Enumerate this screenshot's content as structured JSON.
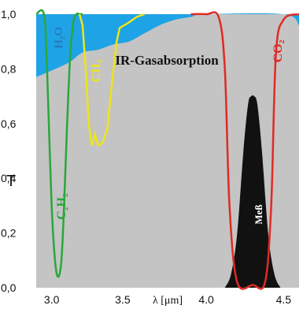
{
  "chart_data": {
    "type": "line",
    "title": "IR-Gasabsorption",
    "xlabel": "λ [μm]",
    "ylabel": "T",
    "xlim": [
      2.9,
      4.6
    ],
    "ylim": [
      0,
      1
    ],
    "x_ticks": [
      "3.0",
      "3.5",
      "4.0",
      "4.5"
    ],
    "y_ticks": [
      "0,0",
      "0,2",
      "0,4",
      "0,6",
      "0,8",
      "1,0"
    ],
    "grid": false,
    "colors": {
      "background": "#c4c4c4",
      "water_band": "#1ea3e6",
      "h2o": "#2a7ab8",
      "c2h2": "#29a83a",
      "ch4": "#ece51b",
      "co2": "#e02a24",
      "filter": "#111111"
    },
    "series": [
      {
        "name": "C₂H₂",
        "label": "C₂H₂",
        "x": [
          2.9,
          2.95,
          2.97,
          3.0,
          3.03,
          3.06,
          3.08,
          3.1,
          3.12,
          3.14,
          3.16,
          3.18,
          3.2
        ],
        "y": [
          1.0,
          1.0,
          0.8,
          0.3,
          0.06,
          0.08,
          0.3,
          0.6,
          0.85,
          0.97,
          1.0,
          1.0,
          1.0
        ]
      },
      {
        "name": "CH₄",
        "label": "CH₄",
        "x": [
          3.18,
          3.2,
          3.22,
          3.24,
          3.26,
          3.28,
          3.3,
          3.33,
          3.36,
          3.39,
          3.42,
          3.44,
          3.47,
          3.5,
          3.55,
          3.6
        ],
        "y": [
          1.0,
          0.96,
          0.8,
          0.6,
          0.52,
          0.56,
          0.52,
          0.53,
          0.58,
          0.75,
          0.9,
          0.95,
          0.96,
          0.97,
          0.99,
          1.0
        ]
      },
      {
        "name": "CO₂",
        "label": "CO₂",
        "x": [
          3.9,
          4.0,
          4.08,
          4.12,
          4.15,
          4.2,
          4.3,
          4.38,
          4.42,
          4.45,
          4.5,
          4.6
        ],
        "y": [
          1.0,
          1.0,
          0.99,
          0.8,
          0.3,
          0.02,
          0.01,
          0.02,
          0.3,
          0.85,
          0.98,
          1.0
        ]
      },
      {
        "name": "Meß",
        "label": "Meß",
        "x": [
          4.12,
          4.16,
          4.2,
          4.24,
          4.27,
          4.29,
          4.31,
          4.33,
          4.36,
          4.4,
          4.44,
          4.48
        ],
        "y": [
          0.0,
          0.05,
          0.2,
          0.5,
          0.67,
          0.7,
          0.7,
          0.67,
          0.5,
          0.2,
          0.05,
          0.0
        ]
      },
      {
        "name": "H₂O",
        "label": "H₂O",
        "x": [
          2.9,
          3.1,
          3.2,
          3.3,
          3.4,
          3.5,
          3.6,
          3.7,
          3.8,
          3.9,
          4.0,
          4.5,
          4.6
        ],
        "y": [
          0.77,
          0.82,
          0.86,
          0.87,
          0.89,
          0.9,
          0.93,
          0.96,
          0.98,
          0.99,
          1.0,
          1.0,
          0.96
        ]
      }
    ]
  }
}
